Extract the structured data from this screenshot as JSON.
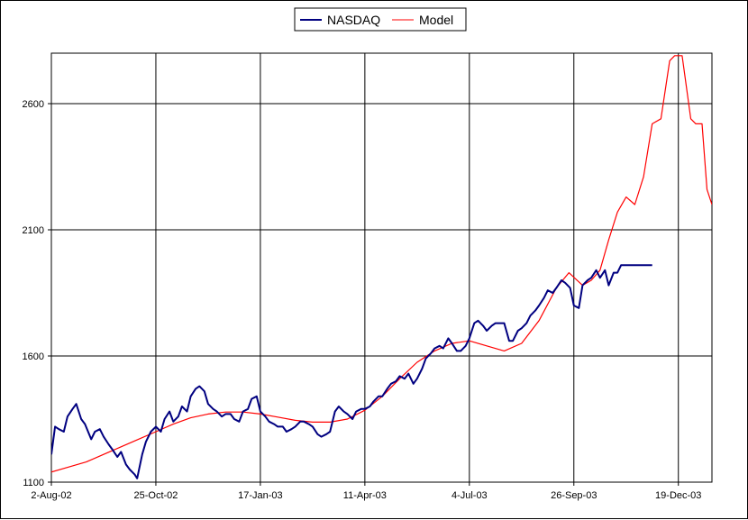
{
  "chart_data": {
    "type": "line",
    "title": "",
    "xlabel": "",
    "ylabel": "",
    "grid": true,
    "legend_position": "top-center",
    "x_domain": [
      "2002-08-02",
      "2004-01-15"
    ],
    "ylim": [
      1100,
      2800
    ],
    "y_ticks": [
      1100,
      1600,
      2100,
      2600
    ],
    "x_ticks": [
      {
        "date": "2002-08-02",
        "label": "2-Aug-02"
      },
      {
        "date": "2002-10-25",
        "label": "25-Oct-02"
      },
      {
        "date": "2003-01-17",
        "label": "17-Jan-03"
      },
      {
        "date": "2003-04-11",
        "label": "11-Apr-03"
      },
      {
        "date": "2003-07-04",
        "label": "4-Jul-03"
      },
      {
        "date": "2003-09-26",
        "label": "26-Sep-03"
      },
      {
        "date": "2003-12-19",
        "label": "19-Dec-03"
      }
    ],
    "series": [
      {
        "name": "NASDAQ",
        "color": "#000080",
        "points": [
          [
            "2002-08-02",
            1210
          ],
          [
            "2002-08-05",
            1320
          ],
          [
            "2002-08-08",
            1310
          ],
          [
            "2002-08-12",
            1300
          ],
          [
            "2002-08-15",
            1360
          ],
          [
            "2002-08-19",
            1390
          ],
          [
            "2002-08-22",
            1410
          ],
          [
            "2002-08-26",
            1350
          ],
          [
            "2002-08-29",
            1330
          ],
          [
            "2002-09-03",
            1270
          ],
          [
            "2002-09-06",
            1300
          ],
          [
            "2002-09-10",
            1310
          ],
          [
            "2002-09-13",
            1280
          ],
          [
            "2002-09-17",
            1250
          ],
          [
            "2002-09-20",
            1230
          ],
          [
            "2002-09-24",
            1200
          ],
          [
            "2002-09-27",
            1220
          ],
          [
            "2002-10-01",
            1170
          ],
          [
            "2002-10-04",
            1150
          ],
          [
            "2002-10-08",
            1130
          ],
          [
            "2002-10-10",
            1115
          ],
          [
            "2002-10-14",
            1210
          ],
          [
            "2002-10-17",
            1260
          ],
          [
            "2002-10-21",
            1300
          ],
          [
            "2002-10-25",
            1320
          ],
          [
            "2002-10-29",
            1300
          ],
          [
            "2002-11-01",
            1350
          ],
          [
            "2002-11-05",
            1380
          ],
          [
            "2002-11-08",
            1340
          ],
          [
            "2002-11-12",
            1360
          ],
          [
            "2002-11-15",
            1400
          ],
          [
            "2002-11-19",
            1380
          ],
          [
            "2002-11-22",
            1440
          ],
          [
            "2002-11-26",
            1470
          ],
          [
            "2002-11-29",
            1480
          ],
          [
            "2002-12-03",
            1460
          ],
          [
            "2002-12-06",
            1410
          ],
          [
            "2002-12-10",
            1390
          ],
          [
            "2002-12-13",
            1380
          ],
          [
            "2002-12-17",
            1360
          ],
          [
            "2002-12-20",
            1370
          ],
          [
            "2002-12-24",
            1370
          ],
          [
            "2002-12-27",
            1350
          ],
          [
            "2002-12-31",
            1340
          ],
          [
            "2003-01-03",
            1380
          ],
          [
            "2003-01-07",
            1390
          ],
          [
            "2003-01-10",
            1430
          ],
          [
            "2003-01-14",
            1440
          ],
          [
            "2003-01-17",
            1380
          ],
          [
            "2003-01-21",
            1360
          ],
          [
            "2003-01-24",
            1340
          ],
          [
            "2003-01-28",
            1330
          ],
          [
            "2003-01-31",
            1320
          ],
          [
            "2003-02-04",
            1320
          ],
          [
            "2003-02-07",
            1300
          ],
          [
            "2003-02-11",
            1310
          ],
          [
            "2003-02-14",
            1320
          ],
          [
            "2003-02-18",
            1340
          ],
          [
            "2003-02-21",
            1340
          ],
          [
            "2003-02-25",
            1330
          ],
          [
            "2003-02-28",
            1320
          ],
          [
            "2003-03-04",
            1290
          ],
          [
            "2003-03-07",
            1280
          ],
          [
            "2003-03-11",
            1290
          ],
          [
            "2003-03-14",
            1300
          ],
          [
            "2003-03-18",
            1380
          ],
          [
            "2003-03-21",
            1400
          ],
          [
            "2003-03-25",
            1380
          ],
          [
            "2003-03-28",
            1370
          ],
          [
            "2003-04-01",
            1350
          ],
          [
            "2003-04-04",
            1380
          ],
          [
            "2003-04-08",
            1390
          ],
          [
            "2003-04-11",
            1390
          ],
          [
            "2003-04-15",
            1400
          ],
          [
            "2003-04-18",
            1420
          ],
          [
            "2003-04-22",
            1440
          ],
          [
            "2003-04-25",
            1440
          ],
          [
            "2003-04-29",
            1470
          ],
          [
            "2003-05-02",
            1490
          ],
          [
            "2003-05-06",
            1500
          ],
          [
            "2003-05-09",
            1520
          ],
          [
            "2003-05-13",
            1510
          ],
          [
            "2003-05-16",
            1530
          ],
          [
            "2003-05-20",
            1490
          ],
          [
            "2003-05-23",
            1510
          ],
          [
            "2003-05-27",
            1550
          ],
          [
            "2003-05-30",
            1590
          ],
          [
            "2003-06-03",
            1610
          ],
          [
            "2003-06-06",
            1630
          ],
          [
            "2003-06-10",
            1640
          ],
          [
            "2003-06-13",
            1630
          ],
          [
            "2003-06-17",
            1670
          ],
          [
            "2003-06-20",
            1650
          ],
          [
            "2003-06-24",
            1620
          ],
          [
            "2003-06-27",
            1620
          ],
          [
            "2003-07-01",
            1640
          ],
          [
            "2003-07-04",
            1670
          ],
          [
            "2003-07-08",
            1730
          ],
          [
            "2003-07-11",
            1740
          ],
          [
            "2003-07-15",
            1720
          ],
          [
            "2003-07-18",
            1700
          ],
          [
            "2003-07-22",
            1720
          ],
          [
            "2003-07-25",
            1730
          ],
          [
            "2003-07-29",
            1730
          ],
          [
            "2003-08-01",
            1730
          ],
          [
            "2003-08-05",
            1660
          ],
          [
            "2003-08-08",
            1660
          ],
          [
            "2003-08-12",
            1700
          ],
          [
            "2003-08-15",
            1710
          ],
          [
            "2003-08-19",
            1730
          ],
          [
            "2003-08-22",
            1760
          ],
          [
            "2003-08-26",
            1780
          ],
          [
            "2003-08-29",
            1800
          ],
          [
            "2003-09-02",
            1830
          ],
          [
            "2003-09-05",
            1860
          ],
          [
            "2003-09-09",
            1850
          ],
          [
            "2003-09-12",
            1870
          ],
          [
            "2003-09-16",
            1900
          ],
          [
            "2003-09-19",
            1890
          ],
          [
            "2003-09-23",
            1870
          ],
          [
            "2003-09-26",
            1800
          ],
          [
            "2003-09-30",
            1790
          ],
          [
            "2003-10-03",
            1880
          ],
          [
            "2003-10-07",
            1900
          ],
          [
            "2003-10-10",
            1910
          ],
          [
            "2003-10-14",
            1940
          ],
          [
            "2003-10-17",
            1910
          ],
          [
            "2003-10-21",
            1940
          ],
          [
            "2003-10-24",
            1880
          ],
          [
            "2003-10-28",
            1930
          ],
          [
            "2003-10-31",
            1930
          ],
          [
            "2003-11-03",
            1960
          ],
          [
            "2003-11-10",
            1960
          ],
          [
            "2003-11-20",
            1960
          ],
          [
            "2003-11-28",
            1960
          ]
        ]
      },
      {
        "name": "Model",
        "color": "#ff0000",
        "points": [
          [
            "2002-08-02",
            1140
          ],
          [
            "2002-08-16",
            1160
          ],
          [
            "2002-08-30",
            1180
          ],
          [
            "2002-09-13",
            1210
          ],
          [
            "2002-09-27",
            1240
          ],
          [
            "2002-10-11",
            1270
          ],
          [
            "2002-10-25",
            1300
          ],
          [
            "2002-11-08",
            1330
          ],
          [
            "2002-11-22",
            1355
          ],
          [
            "2002-12-06",
            1370
          ],
          [
            "2002-12-20",
            1378
          ],
          [
            "2003-01-03",
            1378
          ],
          [
            "2003-01-17",
            1370
          ],
          [
            "2003-01-31",
            1358
          ],
          [
            "2003-02-14",
            1345
          ],
          [
            "2003-02-28",
            1338
          ],
          [
            "2003-03-14",
            1338
          ],
          [
            "2003-03-28",
            1350
          ],
          [
            "2003-04-11",
            1385
          ],
          [
            "2003-04-25",
            1440
          ],
          [
            "2003-05-09",
            1510
          ],
          [
            "2003-05-23",
            1575
          ],
          [
            "2003-06-06",
            1620
          ],
          [
            "2003-06-20",
            1650
          ],
          [
            "2003-07-04",
            1660
          ],
          [
            "2003-07-18",
            1640
          ],
          [
            "2003-08-01",
            1620
          ],
          [
            "2003-08-15",
            1650
          ],
          [
            "2003-08-29",
            1740
          ],
          [
            "2003-09-12",
            1870
          ],
          [
            "2003-09-22",
            1930
          ],
          [
            "2003-10-03",
            1880
          ],
          [
            "2003-10-10",
            1900
          ],
          [
            "2003-10-17",
            1940
          ],
          [
            "2003-10-24",
            2060
          ],
          [
            "2003-10-31",
            2170
          ],
          [
            "2003-11-07",
            2230
          ],
          [
            "2003-11-14",
            2200
          ],
          [
            "2003-11-21",
            2310
          ],
          [
            "2003-11-28",
            2520
          ],
          [
            "2003-12-05",
            2540
          ],
          [
            "2003-12-12",
            2770
          ],
          [
            "2003-12-16",
            2790
          ],
          [
            "2003-12-22",
            2790
          ],
          [
            "2003-12-29",
            2540
          ],
          [
            "2004-01-02",
            2520
          ],
          [
            "2004-01-07",
            2520
          ],
          [
            "2004-01-11",
            2260
          ],
          [
            "2004-01-15",
            2200
          ]
        ]
      }
    ]
  }
}
